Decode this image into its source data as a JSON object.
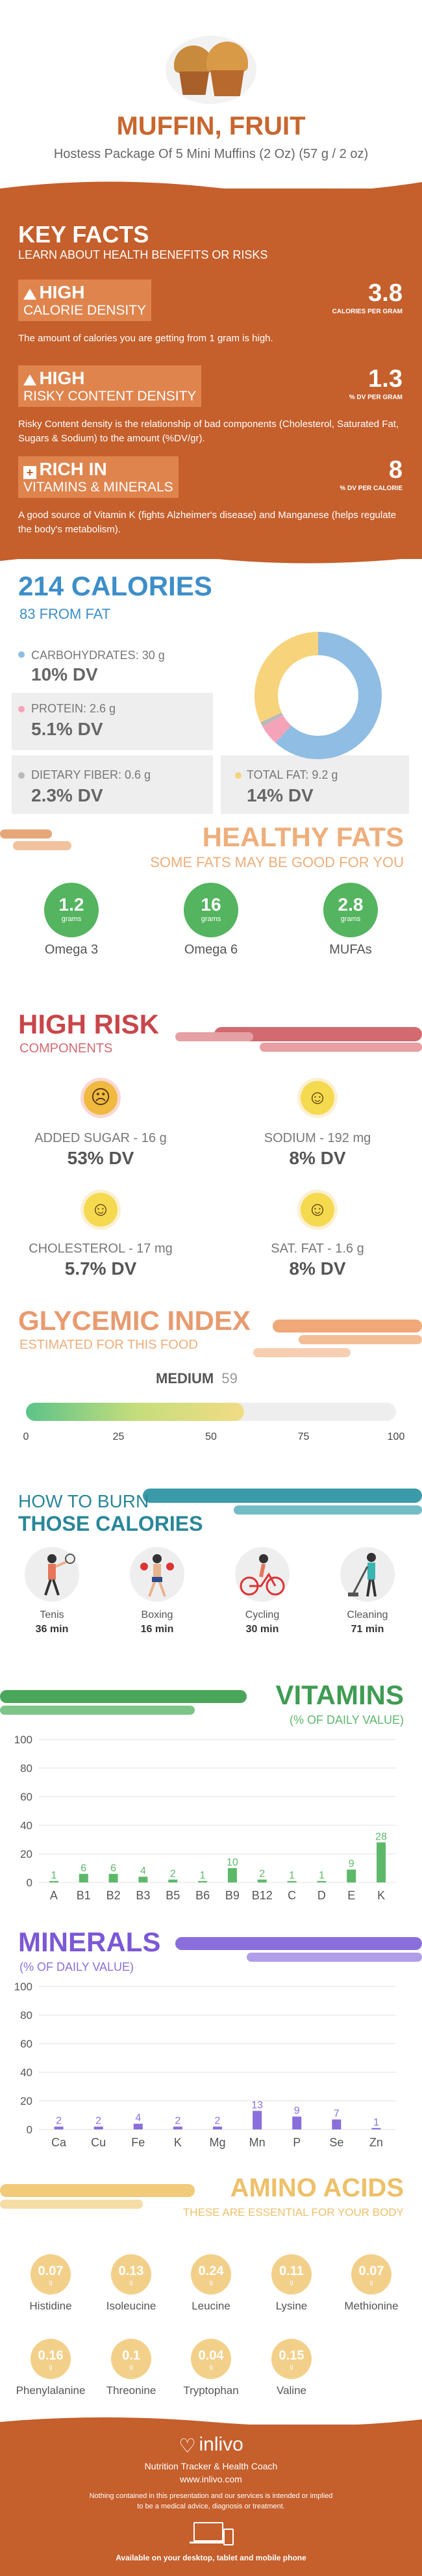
{
  "header": {
    "title": "MUFFIN, FRUIT",
    "subtitle": "Hostess Package Of 5 Mini Muffins (2 Oz) (57 g / 2 oz)"
  },
  "key_facts": {
    "title": "KEY FACTS",
    "subtitle": "LEARN ABOUT HEALTH BENEFITS OR RISKS",
    "items": [
      {
        "level": "HIGH",
        "name": "CALORIE DENSITY",
        "value": "3.8",
        "unit": "CALORIES PER GRAM",
        "desc": "The amount of calories you are getting from 1 gram is high."
      },
      {
        "level": "HIGH",
        "name": "RISKY CONTENT DENSITY",
        "value": "1.3",
        "unit": "% DV PER GRAM",
        "desc": "Risky Content density is the relationship of bad components (Cholesterol, Saturated Fat, Sugars & Sodium) to the amount (%DV/gr)."
      },
      {
        "level": "RICH IN",
        "name": "VITAMINS & MINERALS",
        "value": "8",
        "unit": "% DV PER CALORIE",
        "desc": "A good source of Vitamin K (fights Alzheimer's disease) and Manganese (helps regulate the body's metabolism)."
      }
    ]
  },
  "calories": {
    "title": "214 CALORIES",
    "from_fat": "83 FROM FAT",
    "carbs": {
      "label": "CARBOHYDRATES: 30 g",
      "dv": "10% DV"
    },
    "protein": {
      "label": "PROTEIN: 2.6 g",
      "dv": "5.1% DV"
    },
    "fiber": {
      "label": "DIETARY FIBER: 0.6 g",
      "dv": "2.3% DV"
    },
    "fat": {
      "label": "TOTAL FAT: 9.2 g",
      "dv": "14% DV"
    },
    "colors": {
      "carbs": "#8fbde3",
      "protein": "#f5a3b8",
      "fiber": "#b9b9b9",
      "fat": "#f7d37c"
    }
  },
  "healthy_fats": {
    "title": "HEALTHY FATS",
    "subtitle": "SOME FATS MAY BE GOOD FOR YOU",
    "items": [
      {
        "value": "1.2",
        "unit": "grams",
        "label": "Omega 3"
      },
      {
        "value": "16",
        "unit": "grams",
        "label": "Omega 6"
      },
      {
        "value": "2.8",
        "unit": "grams",
        "label": "MUFAs"
      }
    ]
  },
  "high_risk": {
    "title": "HIGH RISK",
    "subtitle": "COMPONENTS",
    "items": [
      {
        "label": "ADDED SUGAR - 16 g",
        "dv": "53% DV",
        "face": "sad-face-icon"
      },
      {
        "label": "SODIUM - 192 mg",
        "dv": "8% DV",
        "face": "smile-face-icon"
      },
      {
        "label": "CHOLESTEROL - 17 mg",
        "dv": "5.7% DV",
        "face": "smile-face-icon"
      },
      {
        "label": "SAT. FAT - 1.6 g",
        "dv": "8% DV",
        "face": "smile-face-icon"
      }
    ]
  },
  "glycemic": {
    "title": "GLYCEMIC INDEX",
    "subtitle": "ESTIMATED FOR THIS FOOD",
    "level": "MEDIUM",
    "value": "59",
    "value_num": 59,
    "ticks": [
      "0",
      "25",
      "50",
      "75",
      "100"
    ]
  },
  "burn": {
    "title1": "HOW TO BURN",
    "title2": "THOSE CALORIES",
    "items": [
      {
        "label": "Tenis",
        "time": "36 min",
        "icon": "tennis-player-icon"
      },
      {
        "label": "Boxing",
        "time": "16 min",
        "icon": "boxer-icon"
      },
      {
        "label": "Cycling",
        "time": "30 min",
        "icon": "cyclist-icon"
      },
      {
        "label": "Cleaning",
        "time": "71 min",
        "icon": "cleaning-person-icon"
      }
    ]
  },
  "vitamins": {
    "title": "VITAMINS",
    "subtitle": "(% OF DAILY VALUE)",
    "color": "#5db86a"
  },
  "minerals": {
    "title": "MINERALS",
    "subtitle": "(% OF DAILY VALUE)",
    "color": "#8a6fdc"
  },
  "chart_data": [
    {
      "type": "bar",
      "categories": [
        "A",
        "B1",
        "B2",
        "B3",
        "B5",
        "B6",
        "B9",
        "B12",
        "C",
        "D",
        "E",
        "K"
      ],
      "values": [
        1,
        6,
        6,
        4,
        2,
        1,
        10,
        2,
        1,
        1,
        9,
        28
      ],
      "data_labels": [
        "1",
        "6",
        "6",
        "4",
        "2",
        "1",
        "10",
        "2",
        "1",
        "1",
        "9",
        "28"
      ],
      "yticks": [
        "100",
        "80",
        "60",
        "40",
        "20",
        "0"
      ],
      "ylim": [
        0,
        100
      ],
      "grid": true
    },
    {
      "type": "bar",
      "categories": [
        "Ca",
        "Cu",
        "Fe",
        "K",
        "Mg",
        "Mn",
        "P",
        "Se",
        "Zn"
      ],
      "values": [
        2,
        2,
        4,
        2,
        2,
        13,
        9,
        7,
        1
      ],
      "data_labels": [
        "2",
        "2",
        "4",
        "2",
        "2",
        "13",
        "9",
        "7",
        "1"
      ],
      "yticks": [
        "100",
        "80",
        "60",
        "40",
        "20",
        "0"
      ],
      "ylim": [
        0,
        100
      ],
      "grid": true
    }
  ],
  "amino": {
    "title": "AMINO ACIDS",
    "subtitle": "THESE ARE ESSENTIAL FOR YOUR BODY",
    "items": [
      {
        "value": "0.07",
        "unit": "g",
        "label": "Histidine"
      },
      {
        "value": "0.13",
        "unit": "g",
        "label": "Isoleucine"
      },
      {
        "value": "0.24",
        "unit": "g",
        "label": "Leucine"
      },
      {
        "value": "0.11",
        "unit": "g",
        "label": "Lysine"
      },
      {
        "value": "0.07",
        "unit": "g",
        "label": "Methionine"
      },
      {
        "value": "0.16",
        "unit": "g",
        "label": "Phenylalanine"
      },
      {
        "value": "0.1",
        "unit": "g",
        "label": "Threonine"
      },
      {
        "value": "0.04",
        "unit": "g",
        "label": "Tryptophan"
      },
      {
        "value": "0.15",
        "unit": "g",
        "label": "Valine"
      }
    ]
  },
  "footer": {
    "brand": "inlivo",
    "tagline": "Nutrition Tracker & Health Coach",
    "url": "www.inlivo.com",
    "disclaimer1": "Nothing contained in this presentation and our services is intended or implied",
    "disclaimer2": "to be a medical advice, diagnosis or treatment.",
    "available": "Available on your desktop, tablet and mobile phone"
  }
}
